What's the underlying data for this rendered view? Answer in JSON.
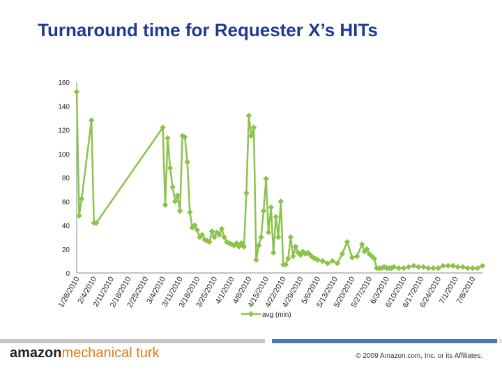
{
  "slide": {
    "title": "Turnaround time for Requester X’s HITs",
    "title_color": "#1f3a93",
    "logo_text_bold": "amazon",
    "logo_text_light": "mechanical turk",
    "copyright": "© 2009 Amazon.com, Inc. or its Affiliates.",
    "footer_colors": [
      "#c8c8c8",
      "#4a78b5",
      "#e6e6e6"
    ]
  },
  "chart_data": {
    "type": "line",
    "title": "",
    "xlabel": "",
    "ylabel": "",
    "ylim": [
      0,
      160
    ],
    "yticks": [
      0,
      20,
      40,
      60,
      80,
      100,
      120,
      140,
      160
    ],
    "grid": false,
    "legend_position": "bottom",
    "series_color": "#8bc34a",
    "x_tick_labels": [
      "1/28/2010",
      "2/4/2010",
      "2/11/2010",
      "2/18/2010",
      "2/25/2010",
      "3/4/2010",
      "3/11/2010",
      "3/18/2010",
      "3/25/2010",
      "4/1/2010",
      "4/8/2010",
      "4/15/2010",
      "4/22/2010",
      "4/29/2010",
      "5/6/2010",
      "5/13/2010",
      "5/20/2010",
      "5/27/2010",
      "6/3/2010",
      "6/10/2010",
      "6/17/2010",
      "6/24/2010",
      "7/1/2010",
      "7/8/2010"
    ],
    "series": [
      {
        "name": "avg (min)",
        "x": [
          "2010-01-28",
          "2010-01-29",
          "2010-01-30",
          "2010-02-03",
          "2010-02-04",
          "2010-02-05",
          "2010-03-04",
          "2010-03-05",
          "2010-03-06",
          "2010-03-07",
          "2010-03-08",
          "2010-03-09",
          "2010-03-10",
          "2010-03-11",
          "2010-03-12",
          "2010-03-13",
          "2010-03-14",
          "2010-03-15",
          "2010-03-16",
          "2010-03-17",
          "2010-03-18",
          "2010-03-19",
          "2010-03-20",
          "2010-03-21",
          "2010-03-22",
          "2010-03-23",
          "2010-03-24",
          "2010-03-25",
          "2010-03-26",
          "2010-03-27",
          "2010-03-28",
          "2010-03-29",
          "2010-03-30",
          "2010-03-31",
          "2010-04-01",
          "2010-04-02",
          "2010-04-03",
          "2010-04-04",
          "2010-04-05",
          "2010-04-06",
          "2010-04-07",
          "2010-04-08",
          "2010-04-09",
          "2010-04-10",
          "2010-04-11",
          "2010-04-12",
          "2010-04-13",
          "2010-04-14",
          "2010-04-15",
          "2010-04-16",
          "2010-04-17",
          "2010-04-18",
          "2010-04-19",
          "2010-04-20",
          "2010-04-21",
          "2010-04-22",
          "2010-04-23",
          "2010-04-24",
          "2010-04-25",
          "2010-04-26",
          "2010-04-27",
          "2010-04-28",
          "2010-04-29",
          "2010-04-30",
          "2010-05-01",
          "2010-05-02",
          "2010-05-03",
          "2010-05-04",
          "2010-05-05",
          "2010-05-06",
          "2010-05-08",
          "2010-05-10",
          "2010-05-12",
          "2010-05-14",
          "2010-05-16",
          "2010-05-18",
          "2010-05-20",
          "2010-05-22",
          "2010-05-24",
          "2010-05-25",
          "2010-05-26",
          "2010-05-27",
          "2010-05-28",
          "2010-05-29",
          "2010-05-30",
          "2010-05-31",
          "2010-06-01",
          "2010-06-02",
          "2010-06-03",
          "2010-06-04",
          "2010-06-05",
          "2010-06-06",
          "2010-06-08",
          "2010-06-10",
          "2010-06-12",
          "2010-06-14",
          "2010-06-16",
          "2010-06-18",
          "2010-06-20",
          "2010-06-22",
          "2010-06-24",
          "2010-06-26",
          "2010-06-28",
          "2010-06-30",
          "2010-07-02",
          "2010-07-04",
          "2010-07-06",
          "2010-07-08",
          "2010-07-10",
          "2010-07-12"
        ],
        "values": [
          152,
          48,
          62,
          128,
          42,
          42,
          122,
          57,
          113,
          88,
          72,
          60,
          65,
          52,
          115,
          114,
          93,
          51,
          38,
          40,
          36,
          30,
          32,
          28,
          27,
          26,
          35,
          30,
          34,
          32,
          37,
          30,
          26,
          25,
          24,
          23,
          25,
          22,
          25,
          22,
          67,
          132,
          115,
          122,
          11,
          23,
          30,
          52,
          79,
          34,
          55,
          17,
          47,
          30,
          60,
          7,
          7,
          12,
          30,
          14,
          22,
          17,
          15,
          18,
          16,
          17,
          15,
          13,
          12,
          11,
          10,
          8,
          10,
          8,
          16,
          26,
          13,
          14,
          24,
          18,
          20,
          16,
          14,
          12,
          4,
          4,
          4,
          5,
          4,
          4,
          4,
          5,
          4,
          4,
          5,
          6,
          5,
          5,
          4,
          4,
          4,
          6,
          6,
          6,
          5,
          5,
          4,
          4,
          4,
          6
        ]
      }
    ]
  }
}
